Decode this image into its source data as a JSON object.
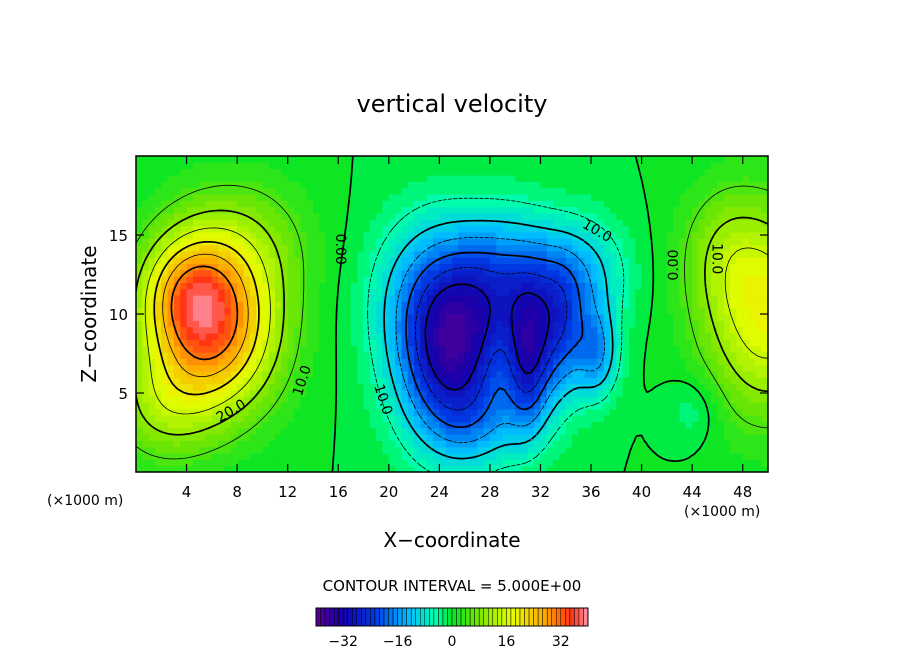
{
  "chart_data": {
    "type": "heatmap",
    "title": "vertical velocity",
    "xlabel": "X−coordinate",
    "ylabel": "Z−coordinate",
    "x_unit_left": "(×1000 m)",
    "x_unit_right": "(×1000 m)",
    "xlim": [
      0,
      50
    ],
    "ylim": [
      0,
      20
    ],
    "x_ticks": [
      4,
      8,
      12,
      16,
      20,
      24,
      28,
      32,
      36,
      40,
      44,
      48
    ],
    "y_ticks": [
      5,
      10,
      15
    ],
    "contour_interval_text": "CONTOUR INTERVAL = 5.000E+00",
    "contour_interval": 5,
    "colorbar": {
      "range": [
        -40,
        40
      ],
      "ticks": [
        -32,
        -16,
        0,
        16,
        32
      ]
    },
    "contour_labels": [
      {
        "text": "20.0",
        "x": 7.5,
        "z": 3.9,
        "rotate": -30
      },
      {
        "text": "10.0",
        "x": 13.1,
        "z": 5.8,
        "rotate": -72
      },
      {
        "text": "0.00",
        "x": 16.2,
        "z": 14.1,
        "rotate": 90
      },
      {
        "text": "10.0",
        "x": 19.6,
        "z": 4.6,
        "rotate": 72
      },
      {
        "text": "10.0",
        "x": 36.5,
        "z": 15.3,
        "rotate": 30
      },
      {
        "text": "0.00",
        "x": 42.5,
        "z": 13.1,
        "rotate": -90
      },
      {
        "text": "10.0",
        "x": 46.0,
        "z": 13.5,
        "rotate": 90
      }
    ],
    "features": [
      {
        "x": 6.0,
        "z": 9.0,
        "sx": 3.6,
        "sz": 3.6,
        "amp": 30
      },
      {
        "x": 4.0,
        "z": 11.5,
        "sx": 2.5,
        "sz": 2.4,
        "amp": 12
      },
      {
        "x": 8.0,
        "z": 14.5,
        "sx": 4.0,
        "sz": 3.0,
        "amp": 8
      },
      {
        "x": 2.0,
        "z": 4.0,
        "sx": 3.0,
        "sz": 2.5,
        "amp": 8
      },
      {
        "x": 25.0,
        "z": 7.0,
        "sx": 3.0,
        "sz": 3.8,
        "amp": -28
      },
      {
        "x": 24.0,
        "z": 11.5,
        "sx": 3.5,
        "sz": 3.5,
        "amp": -14
      },
      {
        "x": 30.0,
        "z": 12.0,
        "sx": 3.0,
        "sz": 3.0,
        "amp": -16
      },
      {
        "x": 31.0,
        "z": 7.0,
        "sx": 1.2,
        "sz": 3.0,
        "amp": -20
      },
      {
        "x": 33.5,
        "z": 8.5,
        "sx": 1.5,
        "sz": 3.0,
        "amp": -16
      },
      {
        "x": 36.5,
        "z": 7.5,
        "sx": 1.2,
        "sz": 2.0,
        "amp": -14
      },
      {
        "x": 35.5,
        "z": 12.5,
        "sx": 2.5,
        "sz": 2.5,
        "amp": -10
      },
      {
        "x": 28.0,
        "z": 3.0,
        "sx": 3.0,
        "sz": 2.0,
        "amp": -6
      },
      {
        "x": 50.0,
        "z": 10.0,
        "sx": 3.5,
        "sz": 4.5,
        "amp": 18
      },
      {
        "x": 46.5,
        "z": 14.0,
        "sx": 2.5,
        "sz": 3.0,
        "amp": 6
      },
      {
        "x": 44.0,
        "z": 4.0,
        "sx": 1.5,
        "sz": 1.5,
        "amp": -4
      }
    ]
  }
}
